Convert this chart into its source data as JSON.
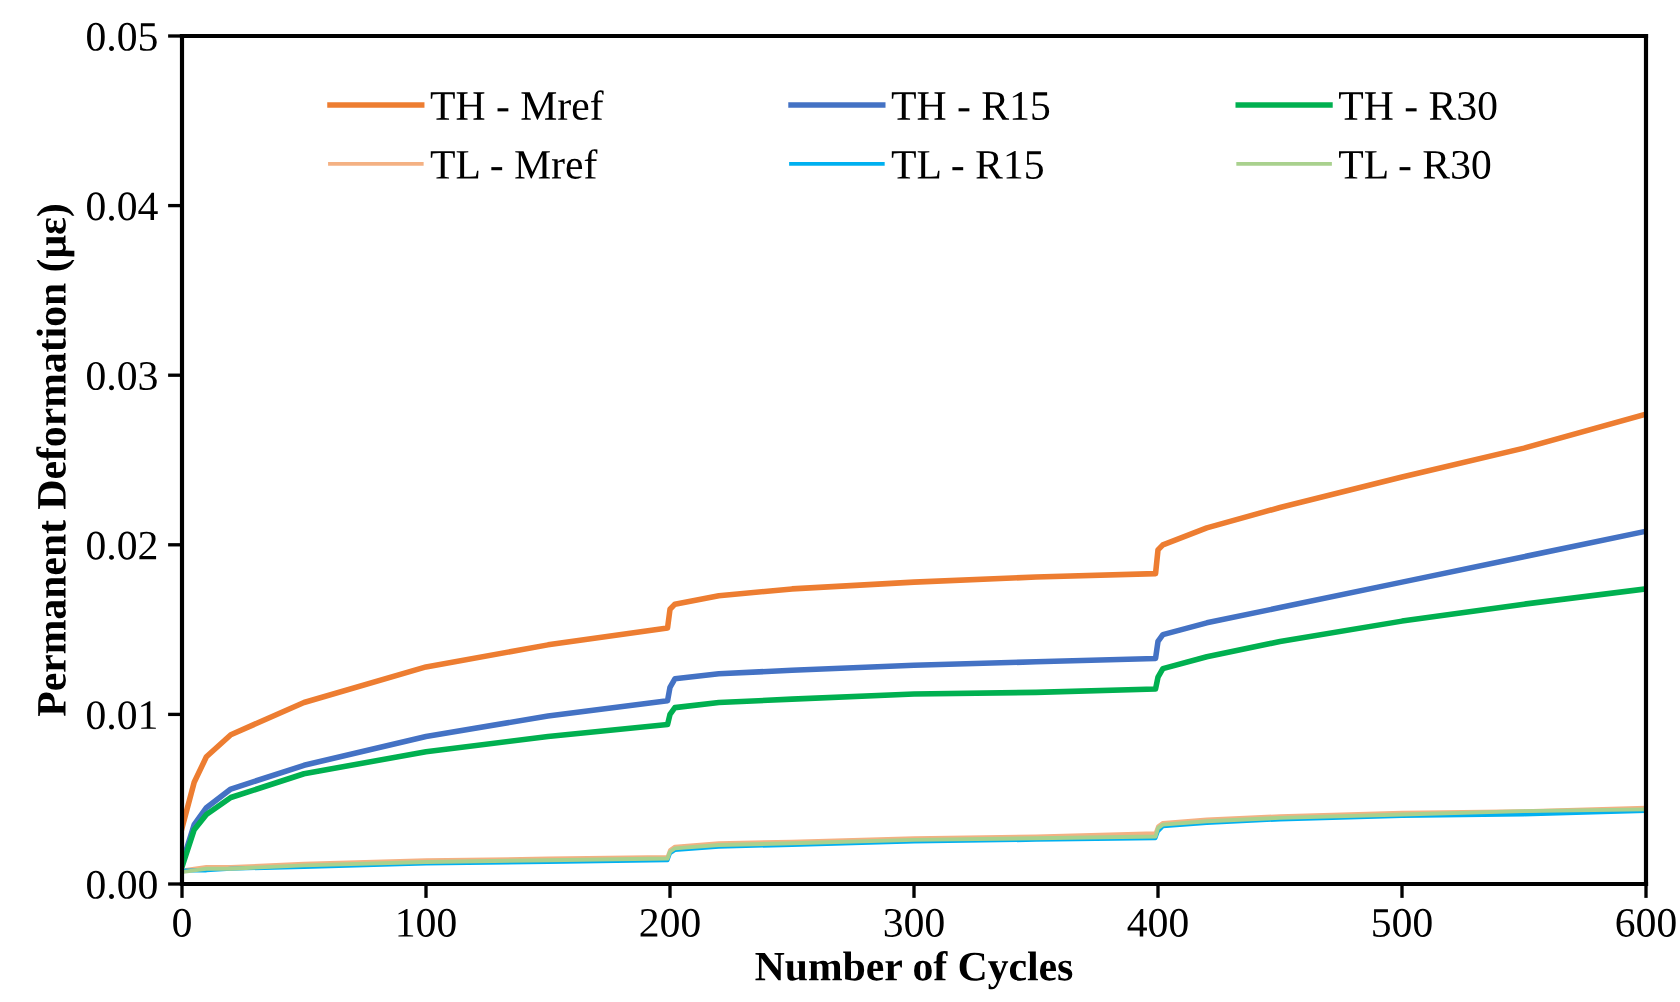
{
  "chart_data": {
    "type": "line",
    "xlabel": "Number of Cycles",
    "ylabel": "Permanent Deformation (με)",
    "x": [
      0,
      5,
      10,
      20,
      50,
      100,
      150,
      199,
      200,
      202,
      220,
      250,
      300,
      350,
      399,
      400,
      402,
      420,
      450,
      500,
      550,
      600
    ],
    "xlim": [
      0,
      600
    ],
    "xticks": [
      0,
      100,
      200,
      300,
      400,
      500,
      600
    ],
    "ylim": [
      0,
      0.05
    ],
    "yticks": [
      {
        "value": 0,
        "label": "0.00"
      },
      {
        "value": 0.01,
        "label": "0.01"
      },
      {
        "value": 0.02,
        "label": "0.02"
      },
      {
        "value": 0.03,
        "label": "0.03"
      },
      {
        "value": 0.04,
        "label": "0.04"
      },
      {
        "value": 0.05,
        "label": "0.05"
      }
    ],
    "grid": false,
    "legend": "top",
    "marker": "none",
    "line_style": "solid",
    "series": [
      {
        "name": "TH - Mref",
        "color": "#ed7d31",
        "values": [
          0.0033,
          0.006,
          0.0075,
          0.0088,
          0.0107,
          0.0128,
          0.0141,
          0.0151,
          0.0162,
          0.0165,
          0.017,
          0.0174,
          0.0178,
          0.0181,
          0.0183,
          0.0197,
          0.02,
          0.021,
          0.0222,
          0.024,
          0.0257,
          0.0277
        ]
      },
      {
        "name": "TH - R15",
        "color": "#4472c4",
        "values": [
          0.0012,
          0.0035,
          0.0045,
          0.0056,
          0.007,
          0.0087,
          0.0099,
          0.0108,
          0.0116,
          0.0121,
          0.0124,
          0.0126,
          0.0129,
          0.0131,
          0.0133,
          0.0143,
          0.0147,
          0.0154,
          0.0163,
          0.0178,
          0.0193,
          0.0208
        ]
      },
      {
        "name": "TH - R30",
        "color": "#00b050",
        "values": [
          0.001,
          0.0032,
          0.0041,
          0.0051,
          0.0065,
          0.0078,
          0.0087,
          0.0094,
          0.01,
          0.0104,
          0.0107,
          0.0109,
          0.0112,
          0.0113,
          0.0115,
          0.0122,
          0.0127,
          0.0134,
          0.0143,
          0.0155,
          0.0165,
          0.0174
        ]
      },
      {
        "name": "TL - Mref",
        "color": "#f4b183",
        "values": [
          0.0008,
          0.0009,
          0.001,
          0.001,
          0.0012,
          0.0014,
          0.0015,
          0.0016,
          0.002,
          0.0022,
          0.0024,
          0.0025,
          0.0027,
          0.0028,
          0.003,
          0.0034,
          0.0036,
          0.0038,
          0.004,
          0.0042,
          0.0043,
          0.0045
        ]
      },
      {
        "name": "TL - R15",
        "color": "#00b0f0",
        "values": [
          0.0008,
          0.0008,
          0.0008,
          0.0009,
          0.001,
          0.0012,
          0.0013,
          0.0014,
          0.0018,
          0.002,
          0.0022,
          0.0023,
          0.0025,
          0.0026,
          0.0027,
          0.0031,
          0.0034,
          0.0036,
          0.0038,
          0.004,
          0.0041,
          0.0043
        ]
      },
      {
        "name": "TL - R30",
        "color": "#a9d18e",
        "values": [
          0.0007,
          0.0008,
          0.0009,
          0.0009,
          0.0011,
          0.0013,
          0.0014,
          0.0015,
          0.0019,
          0.0021,
          0.0023,
          0.0024,
          0.0026,
          0.0027,
          0.0028,
          0.0033,
          0.0035,
          0.0037,
          0.0039,
          0.0041,
          0.0043,
          0.0044
        ]
      }
    ]
  }
}
